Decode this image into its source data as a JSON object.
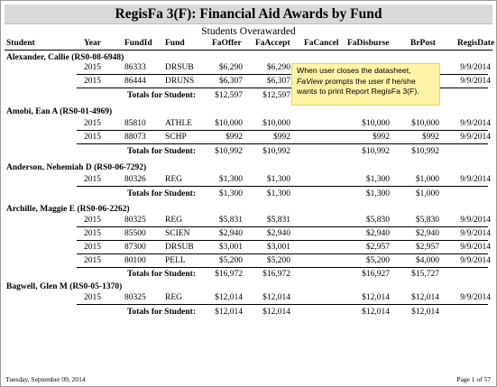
{
  "report": {
    "title": "RegisFa 3(F):  Financial Aid Awards by Fund",
    "subtitle": "Students Overawarded"
  },
  "columns": [
    "Student",
    "Year",
    "FundId",
    "Fund",
    "FaOffer",
    "FaAccept",
    "FaCancel",
    "FaDisburse",
    "BrPost",
    "RegisDate"
  ],
  "totals_label": "Totals for Student:",
  "students": [
    {
      "name": "Alexander, Callie  (RS0-08-6948)",
      "rows": [
        {
          "year": "2015",
          "fund_id": "86333",
          "fund": "DRSUB",
          "offer": "$6,290",
          "accept": "$6,290",
          "cancel": "",
          "disburse": "",
          "brpost": "",
          "regis_date": "9/9/2014"
        },
        {
          "year": "2015",
          "fund_id": "86444",
          "fund": "DRUNS",
          "offer": "$6,307",
          "accept": "$6,307",
          "cancel": "",
          "disburse": "",
          "brpost": "",
          "regis_date": "9/9/2014"
        }
      ],
      "totals": {
        "offer": "$12,597",
        "accept": "$12,597",
        "disburse": "",
        "brpost": ""
      }
    },
    {
      "name": "Amobi, Ean A  (RS0-01-4969)",
      "rows": [
        {
          "year": "2015",
          "fund_id": "85810",
          "fund": "ATHLE",
          "offer": "$10,000",
          "accept": "$10,000",
          "cancel": "",
          "disburse": "$10,000",
          "brpost": "$10,000",
          "regis_date": "9/9/2014"
        },
        {
          "year": "2015",
          "fund_id": "88073",
          "fund": "SCHP",
          "offer": "$992",
          "accept": "$992",
          "cancel": "",
          "disburse": "$992",
          "brpost": "$992",
          "regis_date": "9/9/2014"
        }
      ],
      "totals": {
        "offer": "$10,992",
        "accept": "$10,992",
        "disburse": "$10,992",
        "brpost": "$10,992"
      }
    },
    {
      "name": "Anderson, Nehemiah D  (RS0-06-7292)",
      "rows": [
        {
          "year": "2015",
          "fund_id": "80326",
          "fund": "REG",
          "offer": "$1,300",
          "accept": "$1,300",
          "cancel": "",
          "disburse": "$1,300",
          "brpost": "$1,000",
          "regis_date": "9/9/2014"
        }
      ],
      "totals": {
        "offer": "$1,300",
        "accept": "$1,300",
        "disburse": "$1,300",
        "brpost": "$1,000"
      }
    },
    {
      "name": "Archille, Maggie E  (RS0-06-2262)",
      "rows": [
        {
          "year": "2015",
          "fund_id": "80325",
          "fund": "REG",
          "offer": "$5,831",
          "accept": "$5,831",
          "cancel": "",
          "disburse": "$5,830",
          "brpost": "$5,830",
          "regis_date": "9/9/2014"
        },
        {
          "year": "2015",
          "fund_id": "85500",
          "fund": "SCIEN",
          "offer": "$2,940",
          "accept": "$2,940",
          "cancel": "",
          "disburse": "$2,940",
          "brpost": "$2,940",
          "regis_date": "9/9/2014"
        },
        {
          "year": "2015",
          "fund_id": "87300",
          "fund": "DRSUB",
          "offer": "$3,001",
          "accept": "$3,001",
          "cancel": "",
          "disburse": "$2,957",
          "brpost": "$2,957",
          "regis_date": "9/9/2014"
        },
        {
          "year": "2015",
          "fund_id": "80100",
          "fund": "PELL",
          "offer": "$5,200",
          "accept": "$5,200",
          "cancel": "",
          "disburse": "$5,200",
          "brpost": "$4,000",
          "regis_date": "9/9/2014"
        }
      ],
      "totals": {
        "offer": "$16,972",
        "accept": "$16,972",
        "disburse": "$16,927",
        "brpost": "$15,727"
      }
    },
    {
      "name": "Bagwell, Glen M  (RS0-05-1370)",
      "rows": [
        {
          "year": "2015",
          "fund_id": "80325",
          "fund": "REG",
          "offer": "$12,014",
          "accept": "$12,014",
          "cancel": "",
          "disburse": "$12,014",
          "brpost": "$12,014",
          "regis_date": "9/9/2014"
        }
      ],
      "totals": {
        "offer": "$12,014",
        "accept": "$12,014",
        "disburse": "$12,014",
        "brpost": "$12,014"
      }
    }
  ],
  "tooltip": {
    "part1": "When user closes the datasheet, ",
    "emphasis": "FaView",
    "part2": " prompts the user if he/she wants to print Report RegisFa 3(F)."
  },
  "footer": {
    "date": "Tuesday, September 09, 2014",
    "page": "Page 1 of 57"
  }
}
